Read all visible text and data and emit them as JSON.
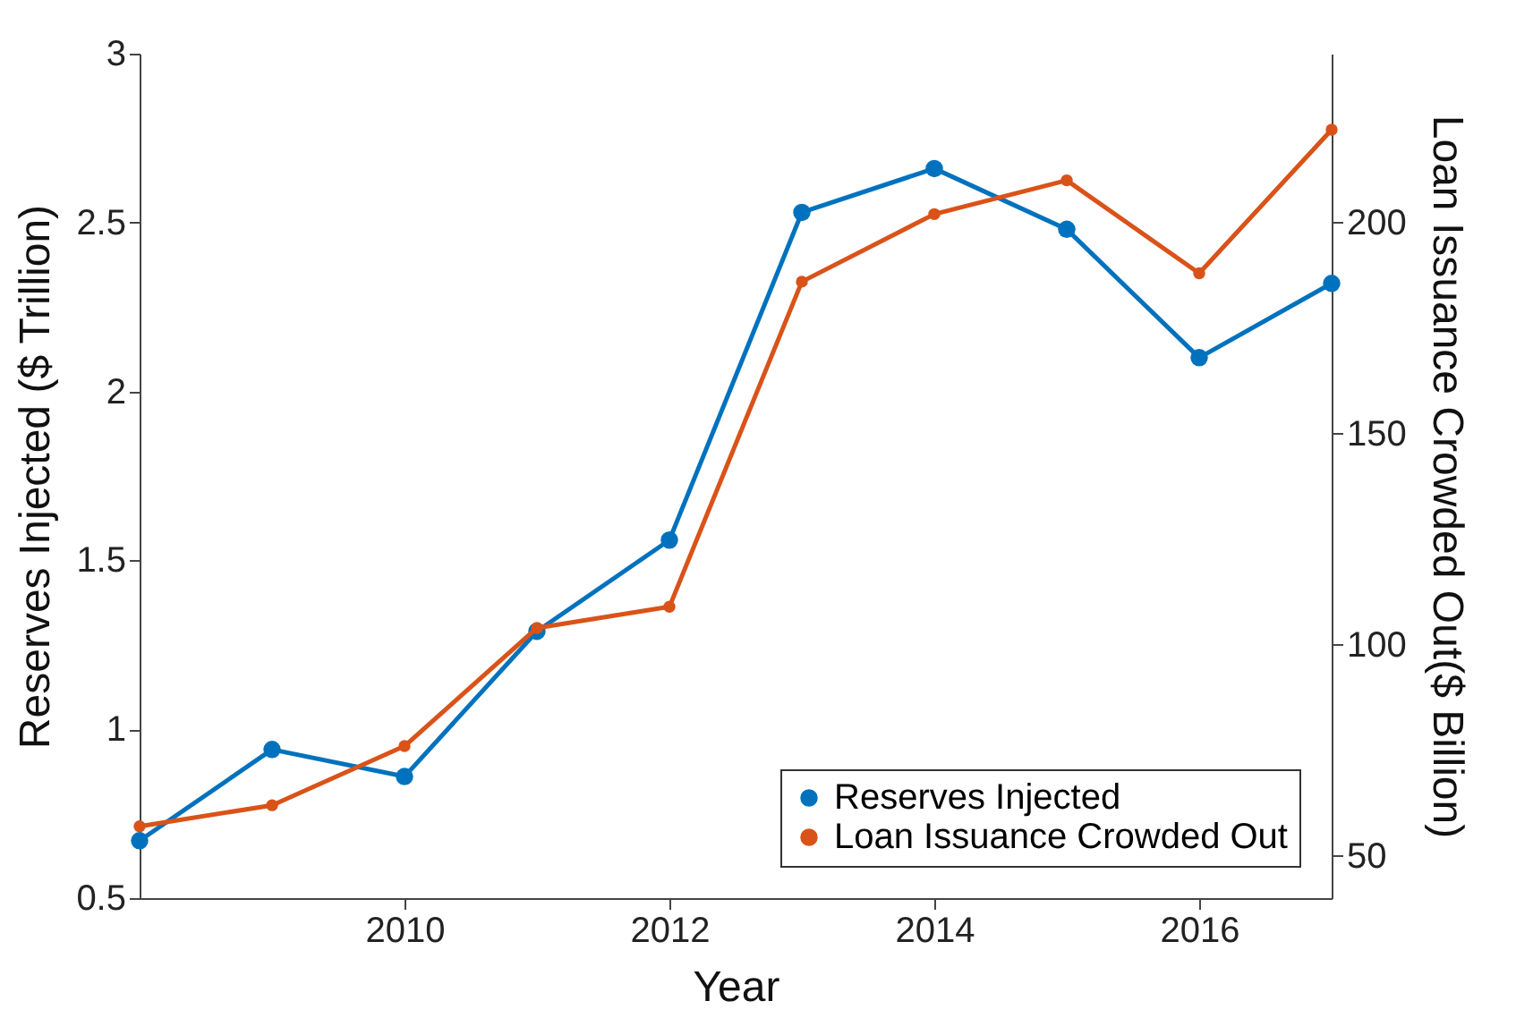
{
  "chart_data": {
    "type": "line",
    "xlabel": "Year",
    "ylabel": "Reserves Injected ($ Trillion)",
    "y2label": "Loan Issuance Crowded Out($ Billion)",
    "x": [
      2008,
      2009,
      2010,
      2011,
      2012,
      2013,
      2014,
      2015,
      2016,
      2017
    ],
    "series": [
      {
        "name": "Reserves Injected",
        "color": "#0072bd",
        "values": [
          0.67,
          0.94,
          0.86,
          1.29,
          1.56,
          2.53,
          2.66,
          2.48,
          2.1,
          2.32
        ]
      },
      {
        "name": "Loan Issuance Crowded Out",
        "color": "#d95319",
        "axis": "y2",
        "values": [
          57,
          62,
          76,
          104,
          109,
          186,
          202,
          210,
          188,
          222
        ]
      }
    ],
    "xlim": [
      2008,
      2017
    ],
    "xticks": [
      2010,
      2012,
      2014,
      2016
    ],
    "ylim": [
      0.5,
      3
    ],
    "yticks": [
      0.5,
      1,
      1.5,
      2,
      2.5,
      3
    ],
    "y2lim": [
      40,
      240
    ],
    "y2ticks": [
      50,
      100,
      150,
      200
    ],
    "legend": "bottom right",
    "marker": "circle",
    "grid": false
  }
}
